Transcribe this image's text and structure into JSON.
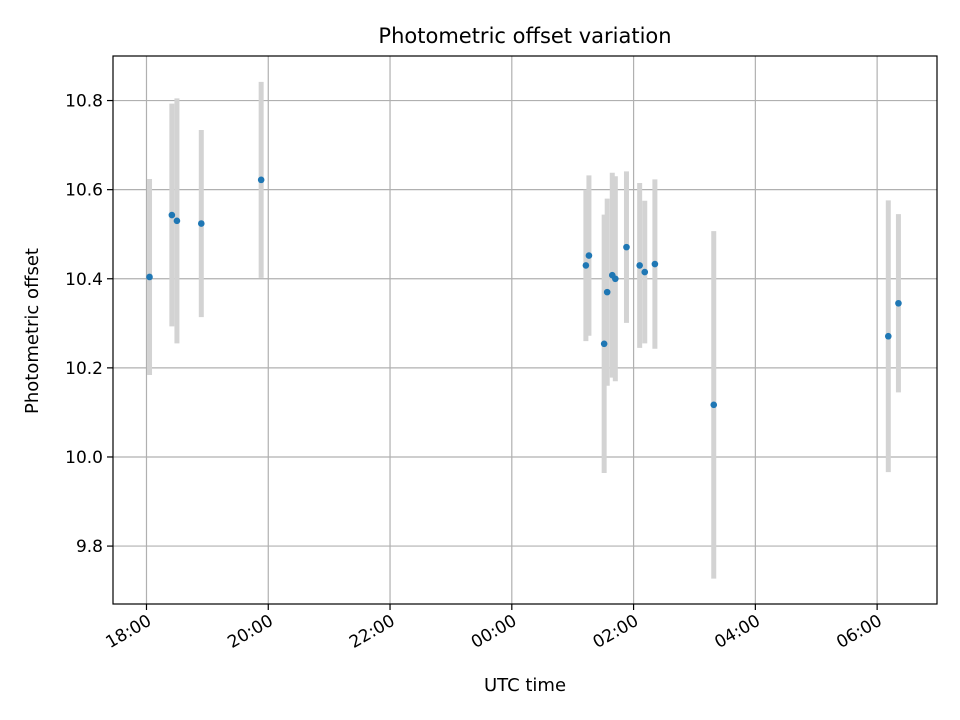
{
  "chart_data": {
    "type": "scatter",
    "title": "Photometric offset variation",
    "xlabel": "UTC time",
    "ylabel": "Photometric offset",
    "grid": true,
    "xlim": [
      "2023-01-01T17:27",
      "2023-01-02T06:59"
    ],
    "ylim": [
      9.67,
      10.9
    ],
    "x_tick_labels": [
      "18:00",
      "20:00",
      "22:00",
      "00:00",
      "02:00",
      "04:00",
      "06:00"
    ],
    "x_ticks": [
      "2023-01-01T18:00",
      "2023-01-01T20:00",
      "2023-01-01T22:00",
      "2023-01-02T00:00",
      "2023-01-02T02:00",
      "2023-01-02T04:00",
      "2023-01-02T06:00"
    ],
    "y_ticks": [
      9.8,
      10.0,
      10.2,
      10.4,
      10.6,
      10.8
    ],
    "y_tick_labels": [
      "9.8",
      "10.0",
      "10.2",
      "10.4",
      "10.6",
      "10.8"
    ],
    "marker_color": "#1f77b4",
    "errorbar_color": "#d3d3d3",
    "points": [
      {
        "x": "2023-01-01T18:03",
        "y": 10.404,
        "err": 0.22
      },
      {
        "x": "2023-01-01T18:25",
        "y": 10.543,
        "err": 0.25
      },
      {
        "x": "2023-01-01T18:30",
        "y": 10.53,
        "err": 0.275
      },
      {
        "x": "2023-01-01T18:54",
        "y": 10.524,
        "err": 0.21
      },
      {
        "x": "2023-01-01T19:53",
        "y": 10.622,
        "err": 0.22
      },
      {
        "x": "2023-01-02T01:13",
        "y": 10.43,
        "err": 0.17
      },
      {
        "x": "2023-01-02T01:16",
        "y": 10.452,
        "err": 0.18
      },
      {
        "x": "2023-01-02T01:31",
        "y": 10.254,
        "err": 0.29
      },
      {
        "x": "2023-01-02T01:34",
        "y": 10.37,
        "err": 0.21
      },
      {
        "x": "2023-01-02T01:39",
        "y": 10.408,
        "err": 0.23
      },
      {
        "x": "2023-01-02T01:42",
        "y": 10.4,
        "err": 0.23
      },
      {
        "x": "2023-01-02T01:53",
        "y": 10.471,
        "err": 0.17
      },
      {
        "x": "2023-01-02T02:06",
        "y": 10.43,
        "err": 0.185
      },
      {
        "x": "2023-01-02T02:11",
        "y": 10.415,
        "err": 0.16
      },
      {
        "x": "2023-01-02T02:21",
        "y": 10.433,
        "err": 0.19
      },
      {
        "x": "2023-01-02T03:19",
        "y": 10.117,
        "err": 0.39
      },
      {
        "x": "2023-01-02T06:11",
        "y": 10.271,
        "err": 0.305
      },
      {
        "x": "2023-01-02T06:21",
        "y": 10.345,
        "err": 0.2
      }
    ]
  }
}
